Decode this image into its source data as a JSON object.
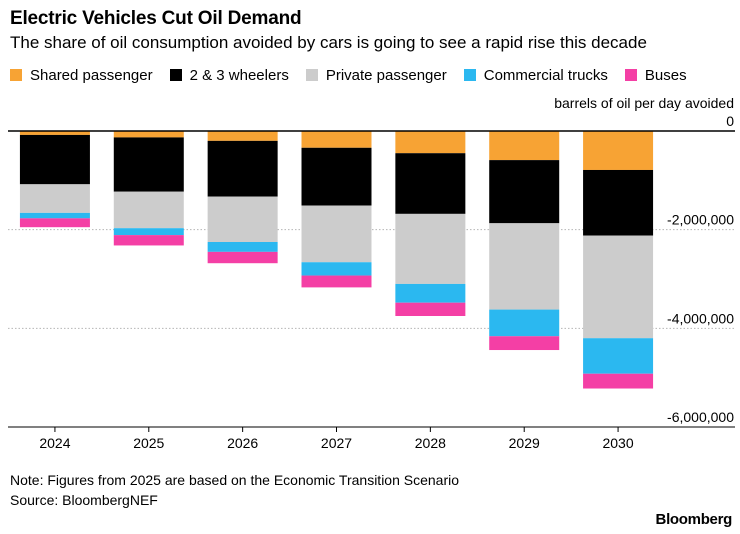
{
  "title": "Electric Vehicles Cut Oil Demand",
  "subtitle": "The share of oil consumption avoided by cars is going to see a rapid rise this decade",
  "note": "Note: Figures from 2025 are based on the Economic Transition Scenario",
  "source": "Source: BloombergNEF",
  "brand": "Bloomberg",
  "chart_data": {
    "type": "bar",
    "stacked": true,
    "ylabel": "barrels of oil per day avoided",
    "ylim": [
      -6000000,
      0
    ],
    "y_ticks": [
      0,
      -2000000,
      -4000000,
      -6000000
    ],
    "y_tick_labels": [
      "0",
      "-2,000,000",
      "-4,000,000",
      "-6,000,000"
    ],
    "y_axis_position": "right",
    "grid": true,
    "legend_position": "top-left",
    "categories": [
      "2024",
      "2025",
      "2026",
      "2027",
      "2028",
      "2029",
      "2030"
    ],
    "series": [
      {
        "name": "Shared passenger",
        "color": "#f7a334",
        "values": [
          -80000,
          -130000,
          -200000,
          -340000,
          -450000,
          -590000,
          -790000
        ]
      },
      {
        "name": "2 & 3 wheelers",
        "color": "#000000",
        "values": [
          -1000000,
          -1100000,
          -1130000,
          -1170000,
          -1230000,
          -1280000,
          -1330000
        ]
      },
      {
        "name": "Private passenger",
        "color": "#cccccc",
        "values": [
          -580000,
          -740000,
          -920000,
          -1150000,
          -1420000,
          -1750000,
          -2080000
        ]
      },
      {
        "name": "Commercial trucks",
        "color": "#2bb8f0",
        "values": [
          -110000,
          -140000,
          -200000,
          -270000,
          -380000,
          -540000,
          -720000
        ]
      },
      {
        "name": "Buses",
        "color": "#f43fa5",
        "values": [
          -180000,
          -210000,
          -230000,
          -240000,
          -270000,
          -280000,
          -300000
        ]
      }
    ]
  }
}
